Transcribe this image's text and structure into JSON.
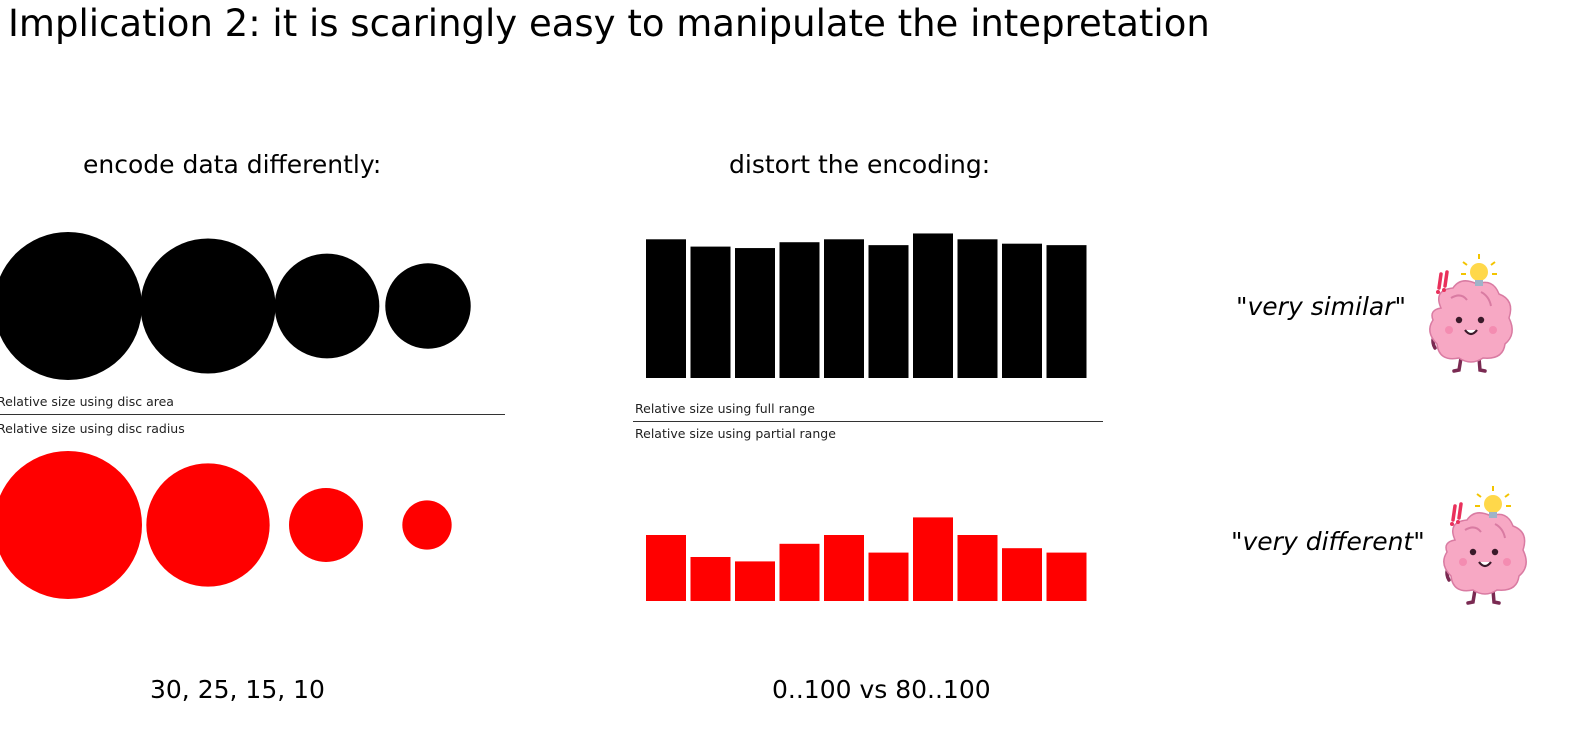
{
  "slide": {
    "title": "Implication 2: it is scaringly easy to manipulate the intepretation"
  },
  "left_panel": {
    "heading": "encode data differently:",
    "label_area": "Relative size using disc area",
    "label_radius": "Relative size using disc radius",
    "values_caption": "30, 25, 15, 10"
  },
  "middle_panel": {
    "heading": "distort the encoding:",
    "label_full": "Relative size using full range",
    "label_partial": "Relative size using partial range",
    "range_caption": "0..100 vs 80..100"
  },
  "right_panel": {
    "similar_quote": "\"very similar\"",
    "different_quote": "\"very different\""
  },
  "icons": {
    "brain_top": "thinking-brain-icon",
    "brain_bottom": "thinking-brain-icon"
  },
  "colors": {
    "black": "#000000",
    "red": "#ff0000",
    "brain_pink": "#f7a8c4",
    "bulb_yellow": "#ffd84a"
  },
  "chart_data": [
    {
      "type": "scatter",
      "encoding": "disc area",
      "values": [
        30,
        25,
        15,
        10
      ],
      "color": "#000000"
    },
    {
      "type": "scatter",
      "encoding": "disc radius",
      "values": [
        30,
        25,
        15,
        10
      ],
      "color": "#ff0000"
    },
    {
      "type": "bar",
      "encoding": "full range",
      "values": [
        95,
        90,
        89,
        93,
        95,
        91,
        99,
        95,
        92,
        91
      ],
      "ylim": [
        0,
        100
      ],
      "color": "#000000"
    },
    {
      "type": "bar",
      "encoding": "partial range",
      "values": [
        95,
        90,
        89,
        93,
        95,
        91,
        99,
        95,
        92,
        91
      ],
      "ylim": [
        80,
        100
      ],
      "color": "#ff0000"
    }
  ]
}
